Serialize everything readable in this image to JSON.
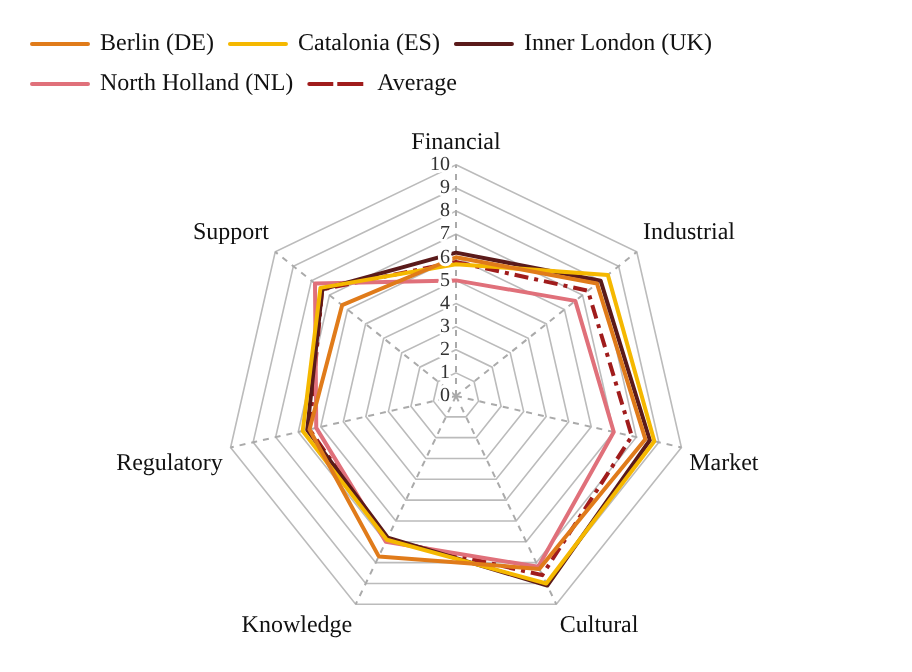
{
  "chart_data": {
    "type": "radar",
    "categories": [
      "Financial",
      "Industrial",
      "Market",
      "Cultural",
      "Knowledge",
      "Regulatory",
      "Support"
    ],
    "series": [
      {
        "name": "Berlin (DE)",
        "color": "#e07b1a",
        "values": [
          6.0,
          7.8,
          8.4,
          8.3,
          7.7,
          6.5,
          6.3
        ]
      },
      {
        "name": "Catalonia (ES)",
        "color": "#f5b800",
        "values": [
          5.7,
          8.4,
          8.8,
          9.0,
          6.9,
          6.8,
          7.5
        ]
      },
      {
        "name": "Inner London (UK)",
        "color": "#5a1a1a",
        "values": [
          6.2,
          8.0,
          8.6,
          9.1,
          6.8,
          6.6,
          7.4
        ]
      },
      {
        "name": "North Holland (NL)",
        "color": "#e0707a",
        "values": [
          5.0,
          6.6,
          7.0,
          8.2,
          7.0,
          6.2,
          7.8
        ]
      },
      {
        "name": "Average",
        "color": "#a01c1c",
        "line_style": "dashed",
        "values": [
          5.8,
          7.3,
          7.8,
          8.6,
          6.9,
          6.5,
          7.4
        ]
      }
    ],
    "ylim": [
      0,
      10
    ],
    "yticks": [
      0,
      1,
      2,
      3,
      4,
      5,
      6,
      7,
      8,
      9,
      10
    ],
    "grid": true,
    "legend": "top left",
    "marker": "none",
    "line_style": "solid"
  }
}
